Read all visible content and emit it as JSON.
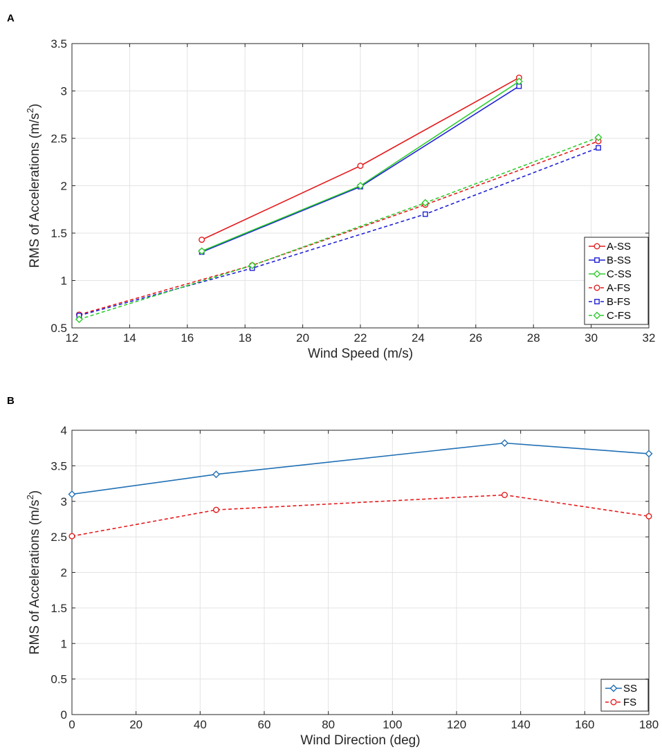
{
  "panels": {
    "a_label": "A",
    "b_label": "B"
  },
  "chart_data": [
    {
      "type": "line",
      "panel": "A",
      "title": "",
      "xlabel": "Wind Speed (m/s)",
      "ylabel_main": "RMS of Accelerations (m/s",
      "ylabel_sup": "2",
      "ylabel_close": ")",
      "xlim": [
        12,
        32
      ],
      "ylim": [
        0.5,
        3.5
      ],
      "xticks": [
        12,
        14,
        16,
        18,
        20,
        22,
        24,
        26,
        28,
        30,
        32
      ],
      "yticks": [
        0.5,
        1,
        1.5,
        2,
        2.5,
        3,
        3.5
      ],
      "ytick_labels": [
        "0.5",
        "1",
        "1.5",
        "2",
        "2.5",
        "3",
        "3.5"
      ],
      "grid": true,
      "legend_position": "bottom-right",
      "series": [
        {
          "name": "A-SS",
          "color": "#e41a1c",
          "dash": "solid",
          "marker": "circle",
          "x": [
            16.5,
            22,
            27.5
          ],
          "y": [
            1.43,
            2.21,
            3.14
          ]
        },
        {
          "name": "B-SS",
          "color": "#1f1fd6",
          "dash": "solid",
          "marker": "square",
          "x": [
            16.5,
            22,
            27.5
          ],
          "y": [
            1.3,
            1.99,
            3.05
          ]
        },
        {
          "name": "C-SS",
          "color": "#2ecc2e",
          "dash": "solid",
          "marker": "diamond",
          "x": [
            16.5,
            22,
            27.5
          ],
          "y": [
            1.31,
            2.0,
            3.1
          ]
        },
        {
          "name": "A-FS",
          "color": "#e41a1c",
          "dash": "dashed",
          "marker": "circle",
          "x": [
            12.25,
            18.25,
            24.25,
            30.25
          ],
          "y": [
            0.64,
            1.16,
            1.8,
            2.47
          ]
        },
        {
          "name": "B-FS",
          "color": "#1f1fd6",
          "dash": "dashed",
          "marker": "square",
          "x": [
            12.25,
            18.25,
            24.25,
            30.25
          ],
          "y": [
            0.63,
            1.13,
            1.7,
            2.4
          ]
        },
        {
          "name": "C-FS",
          "color": "#2ecc2e",
          "dash": "dashed",
          "marker": "diamond",
          "x": [
            12.25,
            18.25,
            24.25,
            30.25
          ],
          "y": [
            0.59,
            1.16,
            1.82,
            2.51
          ]
        }
      ]
    },
    {
      "type": "line",
      "panel": "B",
      "title": "",
      "xlabel": "Wind Direction (deg)",
      "ylabel_main": "RMS of Accelerations (m/s",
      "ylabel_sup": "2",
      "ylabel_close": ")",
      "xlim": [
        0,
        180
      ],
      "ylim": [
        0,
        4
      ],
      "xticks": [
        0,
        20,
        40,
        60,
        80,
        100,
        120,
        140,
        160,
        180
      ],
      "yticks": [
        0,
        0.5,
        1,
        1.5,
        2,
        2.5,
        3,
        3.5,
        4
      ],
      "ytick_labels": [
        "0",
        "0.5",
        "1",
        "1.5",
        "2",
        "2.5",
        "3",
        "3.5",
        "4"
      ],
      "grid": true,
      "legend_position": "bottom-right",
      "series": [
        {
          "name": "SS",
          "color": "#1f6fb4",
          "dash": "solid",
          "marker": "diamond",
          "x": [
            0,
            45,
            135,
            180
          ],
          "y": [
            3.1,
            3.38,
            3.82,
            3.67
          ]
        },
        {
          "name": "FS",
          "color": "#e41a1c",
          "dash": "dashed",
          "marker": "circle",
          "x": [
            0,
            45,
            135,
            180
          ],
          "y": [
            2.51,
            2.88,
            3.09,
            2.79
          ]
        }
      ]
    }
  ]
}
